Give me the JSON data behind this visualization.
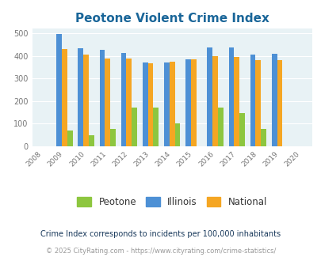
{
  "title": "Peotone Violent Crime Index",
  "years": [
    2009,
    2010,
    2011,
    2012,
    2013,
    2014,
    2015,
    2016,
    2017,
    2018,
    2019
  ],
  "peotone": [
    70,
    50,
    75,
    170,
    170,
    100,
    0,
    172,
    147,
    75,
    0
  ],
  "illinois": [
    498,
    435,
    428,
    414,
    372,
    370,
    383,
    438,
    438,
    405,
    408
  ],
  "national": [
    430,
    405,
    387,
    387,
    367,
    375,
    383,
    397,
    395,
    380,
    380
  ],
  "peotone_color": "#8dc63f",
  "illinois_color": "#4d90d5",
  "national_color": "#f5a623",
  "plot_bg": "#e8f2f5",
  "title_color": "#1a6699",
  "legend_labels": [
    "Peotone",
    "Illinois",
    "National"
  ],
  "footnote1": "Crime Index corresponds to incidents per 100,000 inhabitants",
  "footnote2": "© 2025 CityRating.com - https://www.cityrating.com/crime-statistics/",
  "ylim": [
    0,
    520
  ],
  "yticks": [
    0,
    100,
    200,
    300,
    400,
    500
  ],
  "xlim": [
    2007.5,
    2020.5
  ],
  "bar_width": 0.25
}
